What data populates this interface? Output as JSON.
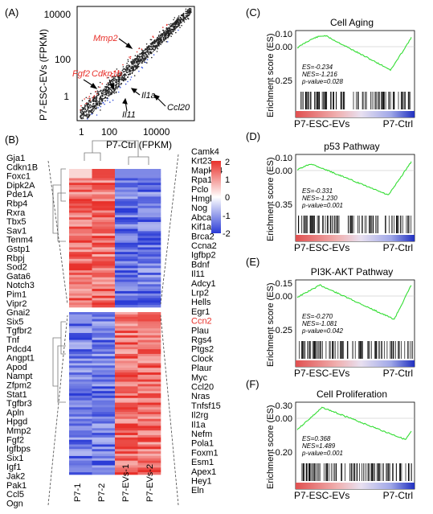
{
  "panels": {
    "A": {
      "label": "(A)",
      "xlabel": "P7-Ctrl (FPKM)",
      "ylabel": "P7-ESC-EVs (FPKM)",
      "xticks": [
        "1",
        "100",
        "10000"
      ],
      "yticks": [
        "1",
        "100",
        "10000"
      ],
      "genes_red": [
        "Mmp2",
        "Fgf2",
        "Cdkn1b"
      ],
      "genes_black": [
        "Ccl20",
        "Il1a",
        "Il11"
      ]
    },
    "B": {
      "label": "(B)",
      "left_genes": [
        "Gja1",
        "Cdkn1B",
        "Foxc1",
        "Dipk2A",
        "Pde1A",
        "Rbp4",
        "Rxra",
        "Tbx5",
        "Sav1",
        "Tenm4",
        "Gstp1",
        "Rbpj",
        "Sod2",
        "Gata6",
        "Notch3",
        "Pim1",
        "Vipr2",
        "Gnai2",
        "Six5",
        "Tgfbr2",
        "Tnf",
        "Pdcd4",
        "Angpt1",
        "Apod",
        "Nampt",
        "Zfpm2",
        "Stat1",
        "Tgfbr3",
        "Apln",
        "Hpgd",
        "Mmp2",
        "Fgf2",
        "Igfbps",
        "Six1",
        "Igf1",
        "Jak2",
        "Pak1",
        "Ccl5",
        "Ogn"
      ],
      "right_genes": [
        "Camk4",
        "Krt23",
        "Mapk14",
        "Rpa1",
        "Pclo",
        "Hmgb1",
        "Nog",
        "Abca13",
        "Kif1a",
        "Brca2",
        "Ccna2",
        "Igfbp2",
        "Bdnf",
        "Il11",
        "Adcy1",
        "Lrp2",
        "Hells",
        "Egr1",
        "Ccn2",
        "Plau",
        "Rgs4",
        "Ptgs2",
        "Clock",
        "Plaur",
        "Myc",
        "Ccl20",
        "Nras",
        "Tnfsf15",
        "Il2rg",
        "Il1a",
        "Nefm",
        "Pola1",
        "Foxm1",
        "Esm1",
        "Apex1",
        "Hey1",
        "Eln"
      ],
      "highlight_gene": "Ccn2",
      "columns": [
        "P7-1",
        "P7-2",
        "P7-EVs-1",
        "P7-EVs-2"
      ],
      "colorbar_ticks": [
        "2",
        "1",
        "0",
        "-1",
        "-2"
      ]
    },
    "gsea": [
      {
        "label": "(C)",
        "title": "Cell Aging",
        "ylabel": "Erichment score (ES)",
        "yticks": [
          "0.10",
          "0.00",
          "-0.25"
        ],
        "stats": [
          "ES=-0.234",
          "NES=-1.216",
          "p-value=0.028"
        ],
        "left": "P7-ESC-EVs",
        "right": "P7-Ctrl"
      },
      {
        "label": "(D)",
        "title": "p53 Pathway",
        "ylabel": "Erichment score (ES)",
        "yticks": [
          "0.10",
          "0.00",
          "-0.35"
        ],
        "stats": [
          "ES=-0.331",
          "NES=-1.230",
          "p-value=0.001"
        ],
        "left": "P7-ESC-EVs",
        "right": "P7-Ctrl"
      },
      {
        "label": "(E)",
        "title": "PI3K-AKT Pathway",
        "ylabel": "Erichment score (ES)",
        "yticks": [
          "0.15",
          "0.00",
          "-0.25"
        ],
        "stats": [
          "ES=-0.270",
          "NES=-1.081",
          "p-value=0.042"
        ],
        "left": "P7-ESC-EVs",
        "right": "P7-Ctrl"
      },
      {
        "label": "(F)",
        "title": "Cell Proliferation",
        "ylabel": "Erichment score (ES)",
        "yticks": [
          "0.30",
          "0.00",
          "-0.20"
        ],
        "stats": [
          "ES=0.368",
          "NES=1.489",
          "p-value=0.001"
        ],
        "left": "P7-ESC-EVs",
        "right": "P7-Ctrl"
      }
    ]
  },
  "colors": {
    "red": "#e8302a",
    "blue": "#2a3bd6",
    "green": "#33dd33",
    "white": "#ffffff"
  }
}
